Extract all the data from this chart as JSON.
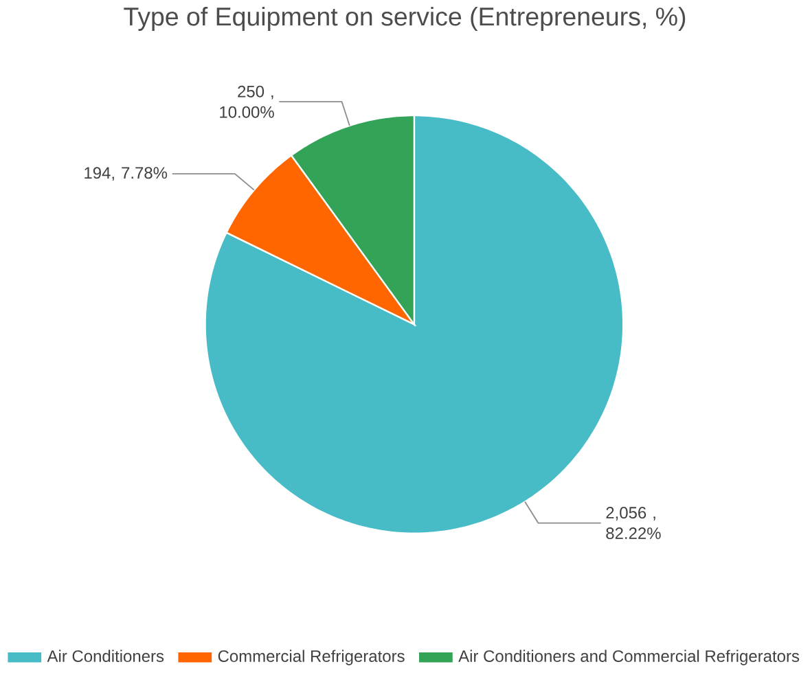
{
  "chart_data": {
    "type": "pie",
    "title": "Type of Equipment on service (Entrepreneurs, %)",
    "categories": [
      "Air Conditioners",
      "Commercial Refrigerators",
      "Air Conditioners and Commercial Refrigerators"
    ],
    "values": [
      2056,
      194,
      250
    ],
    "colors": [
      "#47bbc6",
      "#ff6600",
      "#33a457"
    ],
    "value_labels": [
      "2,056 , 82.22%",
      "194, 7.78%",
      "250 , 10.00%"
    ],
    "legend": "bottom"
  }
}
